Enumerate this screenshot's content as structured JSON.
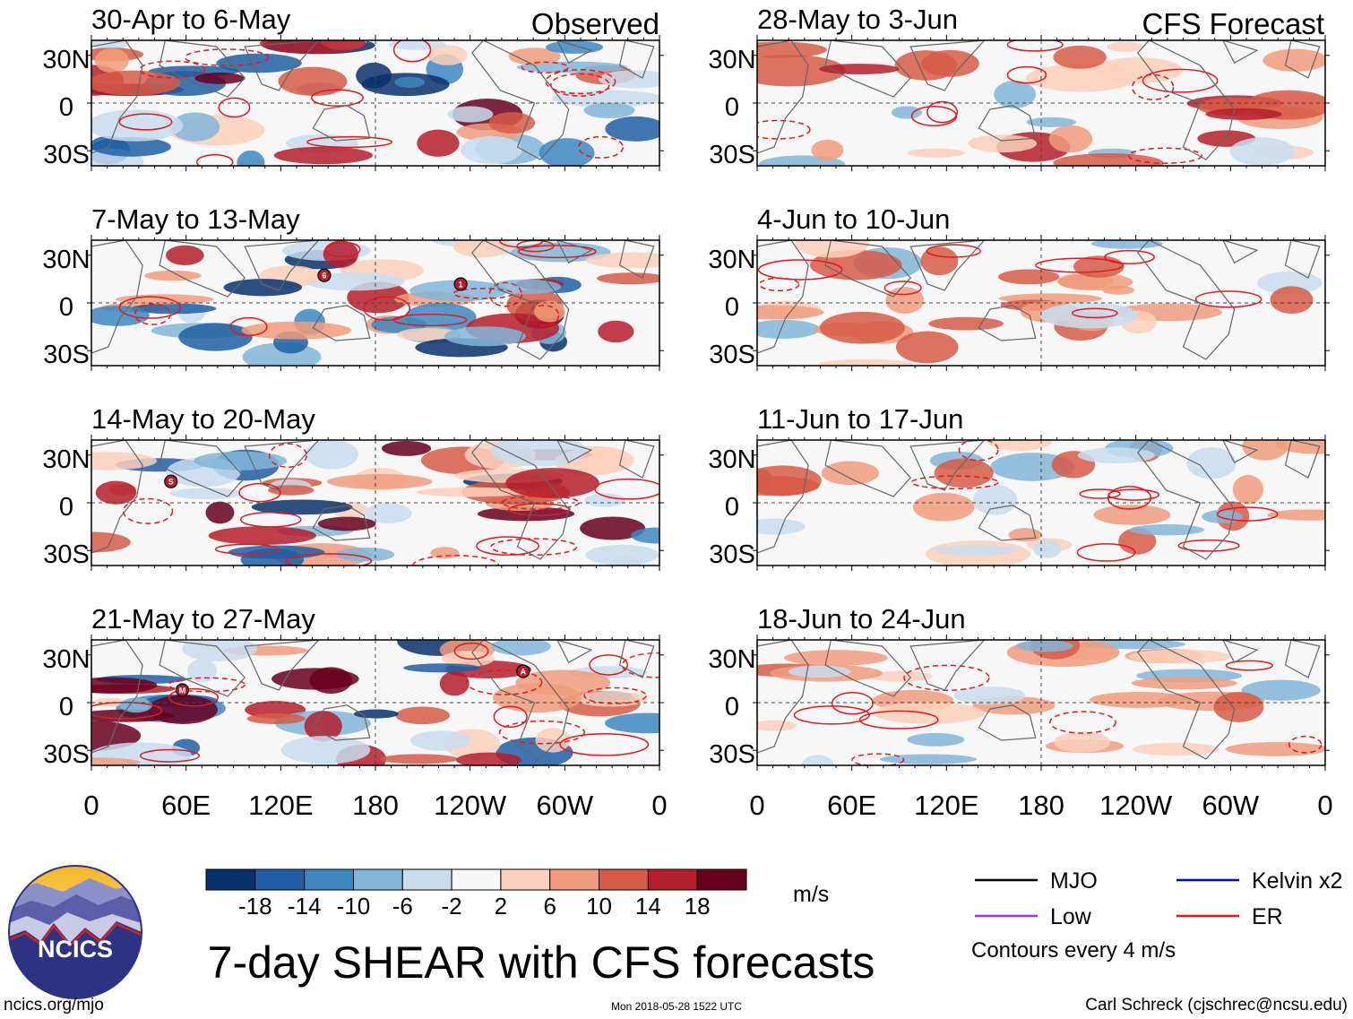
{
  "titles": {
    "left": "Observed",
    "right": "CFS Forecast"
  },
  "panels": [
    {
      "id": "obs-1",
      "label": "30-Apr to 6-May"
    },
    {
      "id": "obs-2",
      "label": "7-May to 13-May"
    },
    {
      "id": "obs-3",
      "label": "14-May to 20-May"
    },
    {
      "id": "obs-4",
      "label": "21-May to 27-May"
    },
    {
      "id": "fc-1",
      "label": "28-May to 3-Jun"
    },
    {
      "id": "fc-2",
      "label": "4-Jun to 10-Jun"
    },
    {
      "id": "fc-3",
      "label": "11-Jun to 17-Jun"
    },
    {
      "id": "fc-4",
      "label": "18-Jun to 24-Jun"
    }
  ],
  "lat_labels": [
    "30N",
    "0",
    "30S"
  ],
  "lon_labels": [
    "0",
    "60E",
    "120E",
    "180",
    "120W",
    "60W",
    "0"
  ],
  "storm_markers": [
    {
      "panel": 1,
      "label": "6"
    },
    {
      "panel": 1,
      "label": "1"
    },
    {
      "panel": 2,
      "label": "S"
    },
    {
      "panel": 3,
      "label": "M"
    },
    {
      "panel": 3,
      "label": "A"
    }
  ],
  "colorbar": {
    "tick_labels": [
      "-18",
      "-14",
      "-10",
      "-6",
      "-2",
      "2",
      "6",
      "10",
      "14",
      "18"
    ],
    "colors": [
      "#08306b",
      "#1f5fa6",
      "#3d87c1",
      "#82b6d8",
      "#c8ddee",
      "#f7f7f7",
      "#fbd0bc",
      "#f09c7c",
      "#d75a46",
      "#b41d2c",
      "#67001f"
    ],
    "units": "m/s"
  },
  "legend": {
    "items": [
      {
        "label": "MJO",
        "color": "#000000"
      },
      {
        "label": "Kelvin x2",
        "color": "#0000cc"
      },
      {
        "label": "Low",
        "color": "#9b30ff"
      },
      {
        "label": "ER",
        "color": "#e31a1c"
      }
    ],
    "contour_note": "Contours every 4 m/s"
  },
  "main_title": "7-day SHEAR with CFS forecasts",
  "logo_text": "NCICS",
  "footer": {
    "url": "ncics.org/mjo",
    "timestamp": "Mon 2018-05-28 1522 UTC",
    "credit": "Carl Schreck (cjschrec@ncsu.edu)"
  }
}
